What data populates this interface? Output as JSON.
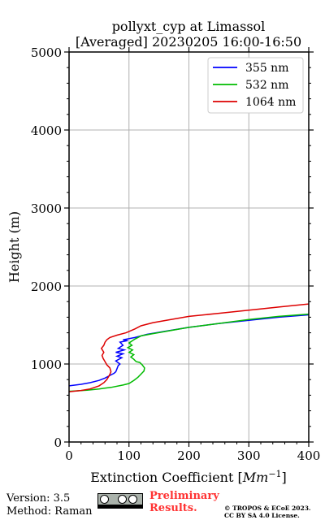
{
  "chart_data": {
    "type": "line",
    "title": "pollyxt_cyp at Limassol",
    "subtitle": "[Averaged] 20230205 16:00-16:50",
    "xlabel": "Extinction Coefficient [",
    "xlabel_unit": "Mm",
    "xlabel_exp": "−1",
    "xlabel_end": "]",
    "ylabel": "Height (m)",
    "xlim": [
      0,
      400
    ],
    "ylim": [
      0,
      5000
    ],
    "xticks": [
      0,
      100,
      200,
      300,
      400
    ],
    "yticks": [
      0,
      1000,
      2000,
      3000,
      4000,
      5000
    ],
    "grid": true,
    "legend_position": "top-right",
    "series": [
      {
        "name": "355 nm",
        "color": "#0000ff",
        "x": [
          0,
          20,
          35,
          50,
          60,
          70,
          75,
          78,
          80,
          82,
          85,
          78,
          88,
          80,
          90,
          78,
          92,
          82,
          90,
          85,
          98,
          90,
          110,
          130,
          160,
          200,
          250,
          300,
          350,
          400
        ],
        "y": [
          720,
          740,
          760,
          790,
          820,
          860,
          880,
          900,
          940,
          980,
          1000,
          1040,
          1080,
          1100,
          1130,
          1150,
          1180,
          1200,
          1240,
          1280,
          1300,
          1310,
          1340,
          1380,
          1420,
          1470,
          1520,
          1560,
          1600,
          1630
        ]
      },
      {
        "name": "532 nm",
        "color": "#00bb00",
        "x": [
          0,
          30,
          50,
          70,
          90,
          100,
          108,
          115,
          120,
          125,
          126,
          122,
          118,
          112,
          108,
          103,
          108,
          100,
          106,
          98,
          105,
          100,
          110,
          120,
          140,
          170,
          200,
          250,
          300,
          350,
          400
        ],
        "y": [
          650,
          665,
          680,
          700,
          730,
          750,
          790,
          830,
          870,
          910,
          950,
          990,
          1020,
          1030,
          1060,
          1090,
          1120,
          1150,
          1180,
          1210,
          1240,
          1270,
          1320,
          1360,
          1390,
          1430,
          1470,
          1520,
          1570,
          1610,
          1640
        ]
      },
      {
        "name": "1064 nm",
        "color": "#dd0000",
        "x": [
          0,
          20,
          35,
          50,
          58,
          63,
          67,
          70,
          68,
          63,
          60,
          57,
          55,
          58,
          54,
          58,
          60,
          63,
          68,
          80,
          95,
          110,
          120,
          140,
          170,
          200,
          250,
          300,
          350,
          400
        ],
        "y": [
          645,
          660,
          680,
          720,
          760,
          800,
          850,
          900,
          950,
          990,
          1030,
          1070,
          1110,
          1150,
          1200,
          1240,
          1280,
          1310,
          1340,
          1370,
          1400,
          1450,
          1490,
          1530,
          1570,
          1610,
          1650,
          1690,
          1730,
          1770
        ]
      }
    ]
  },
  "footer": {
    "version": "Version: 3.5",
    "method": "Method: Raman",
    "preliminary": [
      "Preliminary",
      "Results."
    ],
    "license": [
      "© TROPOS & ECoE 2023.",
      "CC BY SA 4.0 License."
    ]
  }
}
